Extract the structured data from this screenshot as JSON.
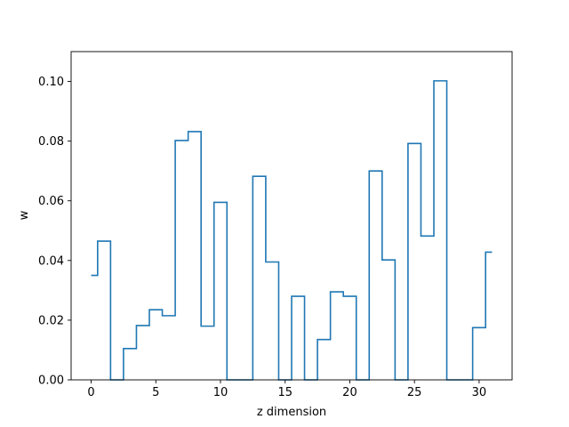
{
  "chart_data": {
    "type": "line",
    "drawstyle": "steps-mid",
    "title": "",
    "xlabel": "z dimension",
    "ylabel": "w",
    "xlim": [
      -1.55,
      32.55
    ],
    "ylim": [
      0.0,
      0.11
    ],
    "x_ticks": [
      0,
      5,
      10,
      15,
      20,
      25,
      30
    ],
    "y_ticks": [
      0.0,
      0.02,
      0.04,
      0.06,
      0.08,
      0.1
    ],
    "y_tick_labels": [
      "0.00",
      "0.02",
      "0.04",
      "0.06",
      "0.08",
      "0.10"
    ],
    "grid": false,
    "series": [
      {
        "color": "#1f77b4",
        "x": [
          0,
          1,
          2,
          3,
          4,
          5,
          6,
          7,
          8,
          9,
          10,
          11,
          12,
          13,
          14,
          15,
          16,
          17,
          18,
          19,
          20,
          21,
          22,
          23,
          24,
          25,
          26,
          27,
          28,
          29,
          30,
          31
        ],
        "values": [
          0.035,
          0.0465,
          0.0,
          0.0105,
          0.0182,
          0.0235,
          0.0215,
          0.0802,
          0.0832,
          0.018,
          0.0595,
          0.0,
          0.0,
          0.0682,
          0.0395,
          0.0,
          0.028,
          0.0,
          0.0135,
          0.0295,
          0.028,
          0.0,
          0.07,
          0.0402,
          0.0,
          0.0792,
          0.0482,
          0.1002,
          0.0,
          0.0,
          0.0175,
          0.0428
        ]
      }
    ]
  }
}
